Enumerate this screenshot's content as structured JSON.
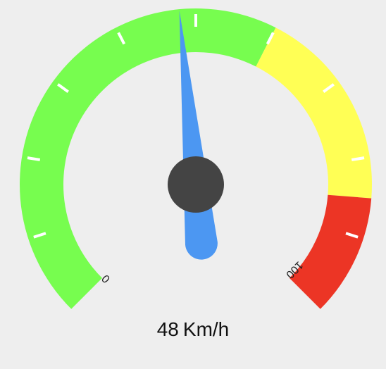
{
  "gauge": {
    "value": 48,
    "min": 0,
    "max": 100,
    "min_label": "0",
    "max_label": "100",
    "unit": "Km/h",
    "segments": [
      {
        "from": 0,
        "to": 60,
        "color": "#77fd4f"
      },
      {
        "from": 60,
        "to": 85,
        "color": "#ffff55"
      },
      {
        "from": 85,
        "to": 100,
        "color": "#ec3525"
      }
    ],
    "colors": {
      "background": "#eeeeee",
      "needle": "#4c97f2",
      "hub": "#444444",
      "ticks": "#ffffff"
    },
    "major_ticks": 10
  }
}
